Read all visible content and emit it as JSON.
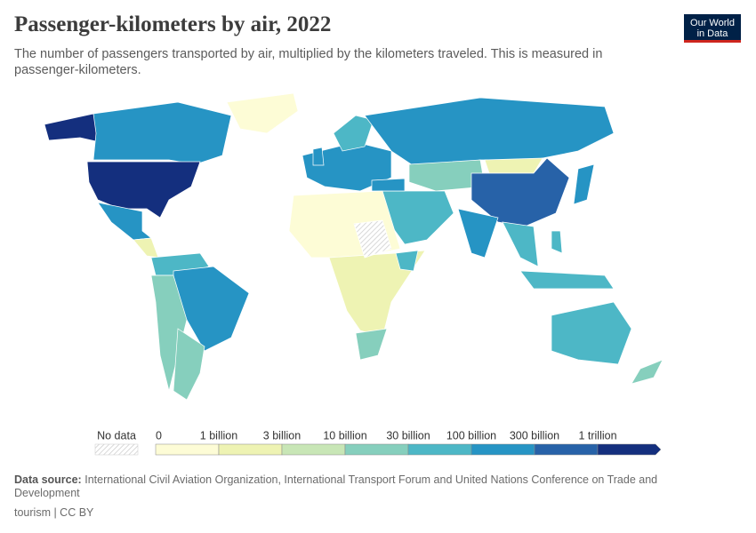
{
  "header": {
    "title": "Passenger-kilometers by air, 2022",
    "subtitle": "The number of passengers transported by air, multiplied by the kilometers traveled. This is measured in passenger-kilometers.",
    "logo": [
      "Our World",
      "in Data"
    ]
  },
  "legend": {
    "no_data": "No data",
    "bins": [
      {
        "label": "0",
        "color": "#fdfcd6"
      },
      {
        "label": "1 billion",
        "color": "#eef3b3"
      },
      {
        "label": "3 billion",
        "color": "#c8e6b6"
      },
      {
        "label": "10 billion",
        "color": "#86cfbd"
      },
      {
        "label": "30 billion",
        "color": "#4db7c6"
      },
      {
        "label": "100 billion",
        "color": "#2694c4"
      },
      {
        "label": "300 billion",
        "color": "#2762a8"
      },
      {
        "label": "1 trillion",
        "color": "#142f7e"
      }
    ]
  },
  "footer": {
    "source_label": "Data source:",
    "source": "International Civil Aviation Organization, International Transport Forum and United Nations Conference on Trade and Development",
    "license": "tourism | CC BY"
  }
}
